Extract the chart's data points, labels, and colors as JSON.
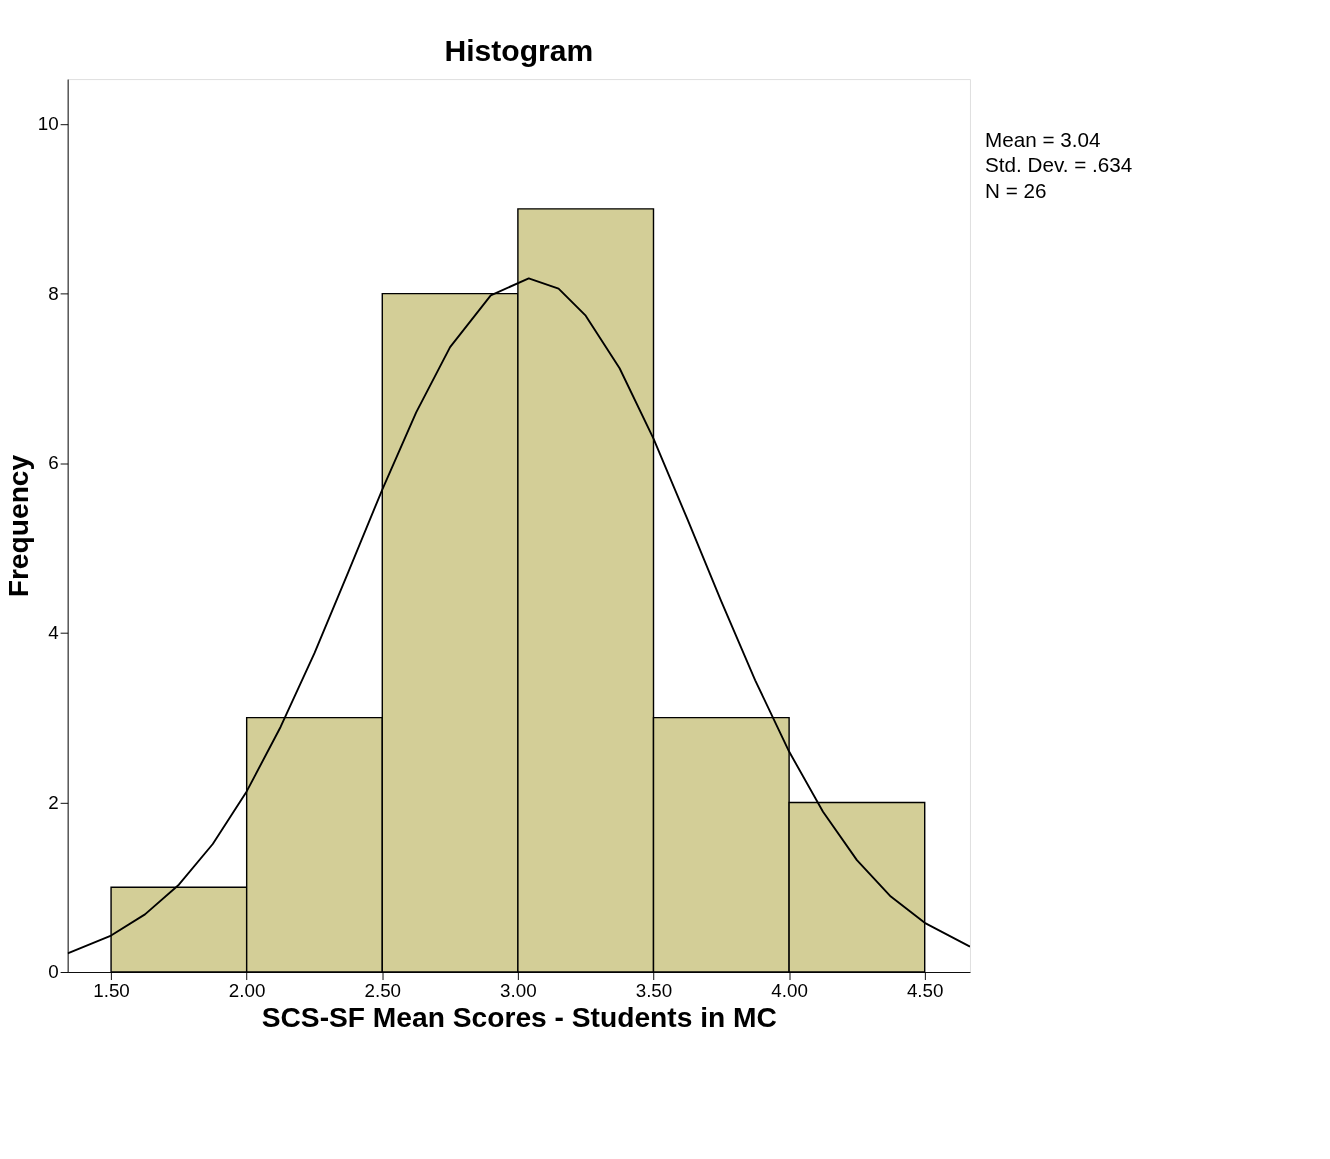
{
  "chart_data": {
    "type": "histogram",
    "title": "Histogram",
    "xlabel": "SCS-SF Mean Scores - Students in MC",
    "ylabel": "Frequency",
    "bins": [
      1.5,
      2.0,
      2.5,
      3.0,
      3.5,
      4.0,
      4.5
    ],
    "values": [
      1,
      3,
      8,
      9,
      3,
      2
    ],
    "color": "#d3ce97",
    "series": [
      {
        "type": "line",
        "color": "#000000",
        "x": [
          1.34,
          1.5,
          1.625,
          1.75,
          1.875,
          2.0,
          2.125,
          2.25,
          2.375,
          2.5,
          2.625,
          2.75,
          2.9,
          3.04,
          3.15,
          3.25,
          3.375,
          3.5,
          3.625,
          3.75,
          3.875,
          4.0,
          4.125,
          4.25,
          4.375,
          4.5,
          4.667
        ],
        "values": [
          0.22,
          0.43,
          0.68,
          1.03,
          1.51,
          2.13,
          2.89,
          3.76,
          4.72,
          5.69,
          6.6,
          7.37,
          7.98,
          8.18,
          8.06,
          7.74,
          7.12,
          6.29,
          5.34,
          4.37,
          3.44,
          2.6,
          1.89,
          1.32,
          0.89,
          0.58,
          0.3
        ]
      }
    ],
    "xlim": [
      1.34,
      4.667
    ],
    "ylim": [
      0,
      10.53
    ],
    "xticks": [
      {
        "value": 1.5,
        "label": "1.50"
      },
      {
        "value": 2,
        "label": "2.00"
      },
      {
        "value": 2.5,
        "label": "2.50"
      },
      {
        "value": 3,
        "label": "3.00"
      },
      {
        "value": 3.5,
        "label": "3.50"
      },
      {
        "value": 4,
        "label": "4.00"
      },
      {
        "value": 4.5,
        "label": "4.50"
      }
    ],
    "yticks": [
      0,
      2,
      4,
      6,
      8,
      10
    ],
    "grid": false,
    "annotations": [
      "Mean = 3.04",
      "Std. Dev. = .634",
      "N = 26"
    ]
  }
}
